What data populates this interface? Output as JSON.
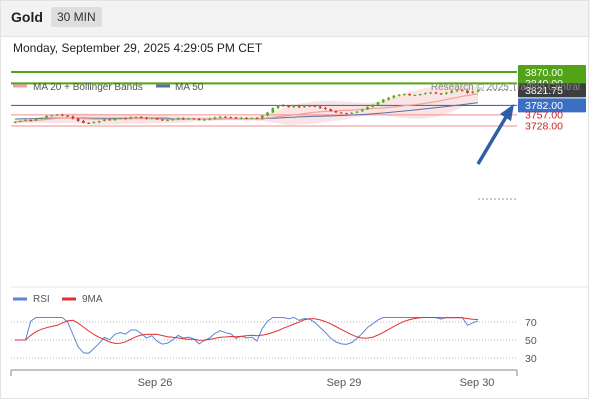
{
  "header": {
    "title": "Gold",
    "interval": "30 MIN"
  },
  "datetime": "Monday, September 29, 2025 4:29:05 PM CET",
  "legend": {
    "ma20_label": "MA 20 + Bollinger Bands",
    "ma50_label": "MA 50",
    "copyright": "Research © 2025 Trading Central",
    "rsi_label": "RSI",
    "ma9_label": "9MA"
  },
  "colors": {
    "bullish": "#4caf1a",
    "bearish": "#c0392b",
    "resistance": "#53a318",
    "pivot": "#3a6fc4",
    "support": "#ef8f8f",
    "support_text": "#d21e1e",
    "last_price": "#3d3d3d",
    "ma20": "#f2a0a0",
    "ma50": "#5b6ea8",
    "bands_fill": "#fbe1e1",
    "rsi": "#5b86d6",
    "rsi_ma": "#e03030",
    "arrow": "#2e5fa6"
  },
  "chart_data": [
    {
      "type": "candlestick",
      "title": "Gold",
      "y_axis_range": [
        3710,
        3880
      ],
      "x_tick_labels": [
        "Sep 26",
        "Sep 29",
        "Sep 30"
      ],
      "levels": [
        {
          "value": 3870.0,
          "label": "3870.00",
          "role": "resistance"
        },
        {
          "value": 3840.0,
          "label": "3840.00",
          "role": "resistance"
        },
        {
          "value": 3821.75,
          "label": "3821.75",
          "role": "last_price"
        },
        {
          "value": 3782.0,
          "label": "3782.00",
          "role": "pivot"
        },
        {
          "value": 3757.0,
          "label": "3757.00",
          "role": "support"
        },
        {
          "value": 3728.0,
          "label": "3728.00",
          "role": "support"
        }
      ],
      "closes": [
        3738.5,
        3741.5,
        3744.0,
        3742.0,
        3747.5,
        3749.0,
        3754.5,
        3756.0,
        3757.5,
        3755.5,
        3752.5,
        3748.0,
        3741.0,
        3736.0,
        3735.5,
        3738.0,
        3741.0,
        3745.0,
        3743.5,
        3747.5,
        3749.0,
        3748.0,
        3751.5,
        3751.5,
        3749.5,
        3747.0,
        3748.5,
        3745.0,
        3743.0,
        3743.5,
        3745.5,
        3748.5,
        3747.0,
        3747.5,
        3746.5,
        3743.5,
        3745.5,
        3747.0,
        3750.0,
        3752.0,
        3751.0,
        3750.5,
        3748.0,
        3749.5,
        3748.5,
        3749.0,
        3747.0,
        3755.5,
        3763.5,
        3775.0,
        3782.0,
        3781.0,
        3777.5,
        3780.0,
        3778.0,
        3781.5,
        3781.0,
        3779.0,
        3775.5,
        3772.0,
        3767.0,
        3763.5,
        3761.5,
        3761.0,
        3762.5,
        3766.0,
        3771.0,
        3778.0,
        3783.5,
        3790.5,
        3797.5,
        3802.5,
        3807.5,
        3810.5,
        3812.5,
        3808.5,
        3809.5,
        3812.0,
        3814.5,
        3816.0,
        3813.5,
        3812.5,
        3815.5,
        3820.0,
        3822.0,
        3821.0,
        3815.0,
        3818.5,
        3821.75
      ],
      "rsi": {
        "levels": [
          70,
          50,
          30
        ]
      }
    }
  ]
}
